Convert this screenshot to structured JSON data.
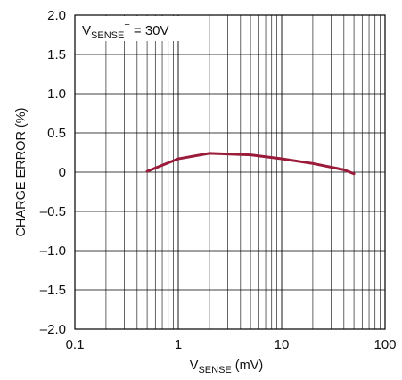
{
  "chart_data": {
    "type": "line",
    "title": "",
    "annotation": {
      "main": "V",
      "sub": "SENSE",
      "sup": "+",
      "rest": " = 30V"
    },
    "xlabel": {
      "main": "V",
      "sub": "SENSE",
      "rest": " (mV)"
    },
    "ylabel": "CHARGE ERROR (%)",
    "x_scale": "log",
    "xlim": [
      0.1,
      100
    ],
    "ylim": [
      -2.0,
      2.0
    ],
    "x_ticks": [
      {
        "value": 0.1,
        "label": "0.1"
      },
      {
        "value": 1,
        "label": "1"
      },
      {
        "value": 10,
        "label": "10"
      },
      {
        "value": 100,
        "label": "100"
      }
    ],
    "y_ticks": [
      {
        "value": 2.0,
        "label": "2.0"
      },
      {
        "value": 1.5,
        "label": "1.5"
      },
      {
        "value": 1.0,
        "label": "1.0"
      },
      {
        "value": 0.5,
        "label": "0.5"
      },
      {
        "value": 0,
        "label": "0"
      },
      {
        "value": -0.5,
        "label": "–0.5"
      },
      {
        "value": -1.0,
        "label": "–1.0"
      },
      {
        "value": -1.5,
        "label": "–1.5"
      },
      {
        "value": -2.0,
        "label": "–2.0"
      }
    ],
    "grid": true,
    "series": [
      {
        "color": "#9b1b3a",
        "x": [
          0.5,
          1,
          2,
          5,
          10,
          20,
          40,
          50
        ],
        "y": [
          0.01,
          0.17,
          0.24,
          0.22,
          0.17,
          0.11,
          0.03,
          -0.02
        ]
      }
    ]
  }
}
